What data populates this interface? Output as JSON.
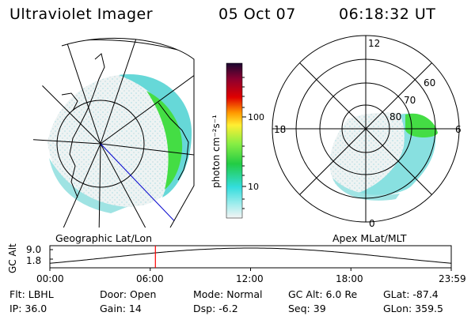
{
  "header": {
    "title": "Ultraviolet Imager",
    "date": "05 Oct 07",
    "time": "06:18:32 UT"
  },
  "colorbar": {
    "unit_label": "photon cm⁻²s⁻¹",
    "ticks": [
      "100",
      "10"
    ]
  },
  "polar_plot": {
    "mlt_labels": {
      "top": "12",
      "left": "18",
      "right": "6",
      "bottom": "0"
    },
    "lat_labels": [
      "80",
      "70",
      "60"
    ],
    "caption": "Apex MLat/MLT"
  },
  "geo_map": {
    "caption": "Geographic Lat/Lon"
  },
  "timeline": {
    "ylabel": "GC Alt",
    "ymax": "9.0",
    "ymin": "1.8",
    "xticks": [
      "00:00",
      "06:00",
      "12:00",
      "18:00",
      "23:59"
    ],
    "cursor_time_hours": 6.31,
    "cursor_color": "#ff0000"
  },
  "info": {
    "flt": "Flt: LBHL",
    "ip": "IP: 36.0",
    "door": "Door: Open",
    "gain": "Gain: 14",
    "mode": "Mode: Normal",
    "dsp": "Dsp:   -6.2",
    "gc_alt": "GC Alt: 6.0 Re",
    "seq": "Seq: 39",
    "glat": "GLat: -87.4",
    "glon": "GLon: 359.5"
  },
  "colors": {
    "aurora_green": "#44dd44",
    "aurora_cyan": "#66dddd",
    "orbit_blue": "#0000cc"
  }
}
